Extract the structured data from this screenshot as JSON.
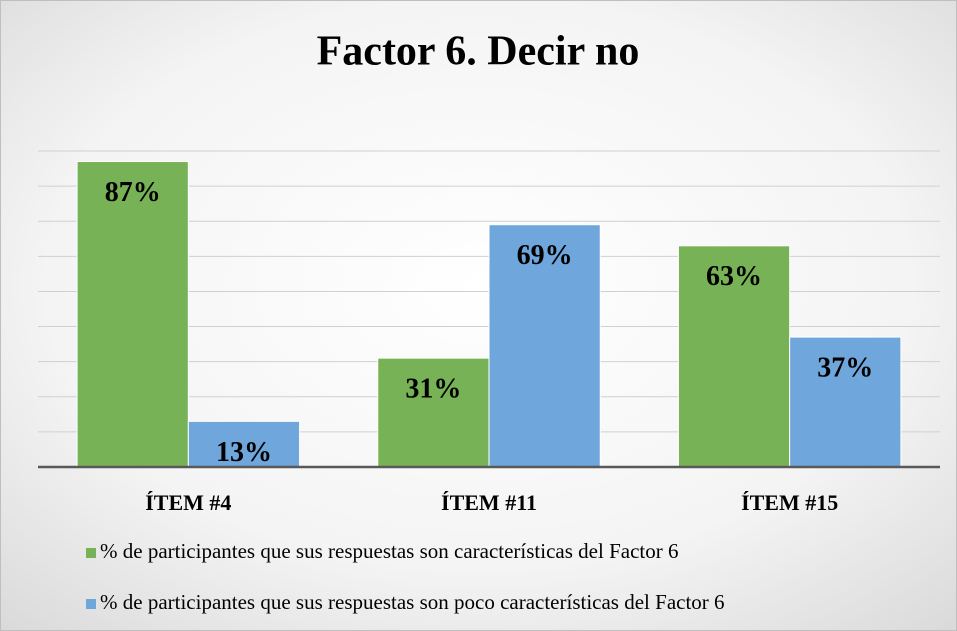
{
  "chart_data": {
    "type": "bar",
    "title": "Factor 6. Decir no",
    "categories": [
      "ÍTEM #4",
      "ÍTEM #11",
      "ÍTEM #15"
    ],
    "series": [
      {
        "name": "% de participantes que sus respuestas son características del Factor 6",
        "color": "#77b356",
        "values": [
          87,
          31,
          63
        ],
        "value_labels": [
          "87%",
          "31%",
          "63%"
        ]
      },
      {
        "name": "% de participantes que sus respuestas son poco características del Factor 6",
        "color": "#6fa6dc",
        "values": [
          13,
          69,
          37
        ],
        "value_labels": [
          "13%",
          "69%",
          "37%"
        ]
      }
    ],
    "ylim": [
      0,
      90
    ],
    "yticks": [
      0,
      10,
      20,
      30,
      40,
      50,
      60,
      70,
      80,
      90
    ],
    "grid": true,
    "legend": "bottom"
  }
}
